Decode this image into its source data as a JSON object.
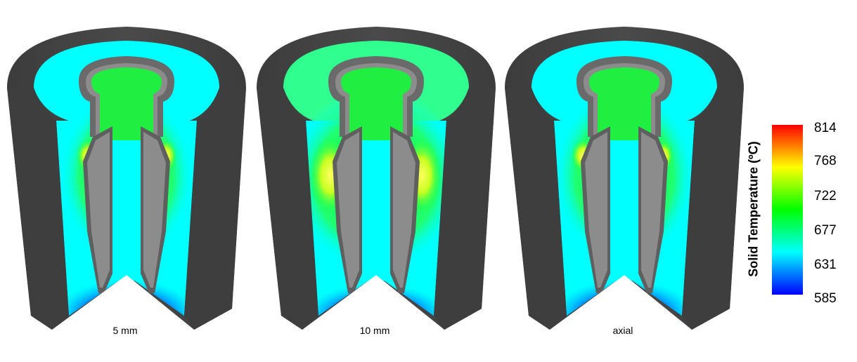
{
  "panels": [
    {
      "caption": "5 mm",
      "variant": "narrow"
    },
    {
      "caption": "10 mm",
      "variant": "wide"
    },
    {
      "caption": "axial",
      "variant": "narrow"
    }
  ],
  "colorbar": {
    "title": "Solid Temperature (ºC)",
    "ticks": [
      "814",
      "768",
      "722",
      "677",
      "631",
      "585"
    ],
    "colors": [
      "#ff0000",
      "#ffff00",
      "#00ff00",
      "#00ffff",
      "#0000ff"
    ]
  },
  "palette": {
    "shell": "#4a4a4a",
    "shell_dark": "#3a3a3a",
    "insert": "#8c8c8c",
    "insert_edge": "#5f5f5f",
    "cold": "#00ffff",
    "warm": "#00ff40",
    "hot": "#f4ff40",
    "coldest": "#0010e0"
  }
}
